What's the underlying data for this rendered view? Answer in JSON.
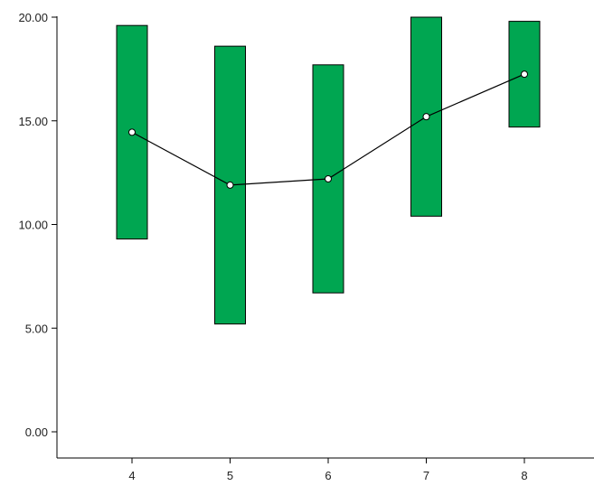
{
  "chart_data": {
    "type": "bar",
    "subtype": "floating range bars with mean line",
    "categories": [
      "4",
      "5",
      "6",
      "7",
      "8"
    ],
    "ranges": [
      {
        "low": 9.3,
        "high": 19.6
      },
      {
        "low": 5.2,
        "high": 18.6
      },
      {
        "low": 6.7,
        "high": 17.7
      },
      {
        "low": 10.4,
        "high": 20.0
      },
      {
        "low": 14.7,
        "high": 19.8
      }
    ],
    "means": [
      14.45,
      11.9,
      12.2,
      15.2,
      17.25
    ],
    "ylim": [
      0,
      20
    ],
    "yticks": [
      "0.00",
      "5.00",
      "10.00",
      "15.00",
      "20.00"
    ],
    "xlabel": "",
    "ylabel": "",
    "title": "",
    "grid": false,
    "colors": {
      "bar_fill": "#00a651",
      "bar_stroke": "#000000",
      "line": "#000000",
      "point_fill": "#ffffff"
    }
  }
}
